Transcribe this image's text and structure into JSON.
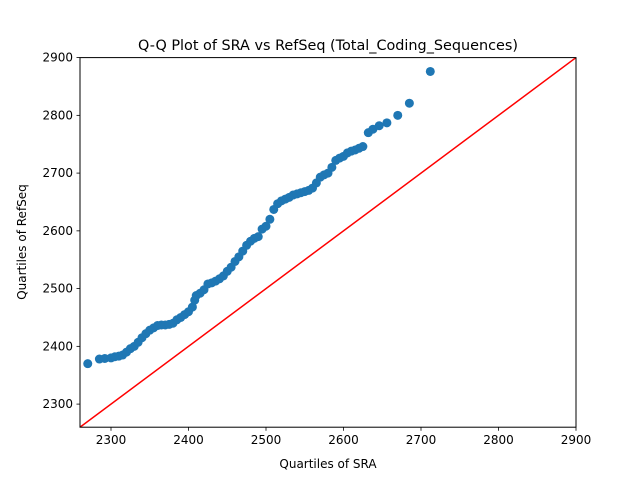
{
  "chart_data": {
    "type": "scatter",
    "title": "Q-Q Plot of SRA vs RefSeq (Total_Coding_Sequences)",
    "xlabel": "Quartiles of SRA",
    "ylabel": "Quartiles of RefSeq",
    "xlim": [
      2260,
      2900
    ],
    "ylim": [
      2260,
      2900
    ],
    "xticks": [
      "2300",
      "2400",
      "2500",
      "2600",
      "2700",
      "2800",
      "2900"
    ],
    "yticks": [
      "2300",
      "2400",
      "2500",
      "2600",
      "2700",
      "2800",
      "2900"
    ],
    "grid": false,
    "legend": "none",
    "series": [
      {
        "kind": "points",
        "color": "#1f77b4",
        "x": [
          2270,
          2285,
          2292,
          2300,
          2305,
          2310,
          2315,
          2320,
          2325,
          2330,
          2335,
          2340,
          2345,
          2350,
          2355,
          2360,
          2365,
          2370,
          2375,
          2380,
          2385,
          2390,
          2395,
          2400,
          2405,
          2408,
          2410,
          2415,
          2420,
          2425,
          2430,
          2435,
          2440,
          2445,
          2450,
          2455,
          2460,
          2465,
          2470,
          2475,
          2480,
          2485,
          2490,
          2495,
          2500,
          2505,
          2510,
          2515,
          2520,
          2525,
          2530,
          2535,
          2540,
          2545,
          2550,
          2555,
          2560,
          2565,
          2570,
          2575,
          2580,
          2585,
          2590,
          2595,
          2600,
          2605,
          2610,
          2615,
          2620,
          2625,
          2632,
          2638,
          2646,
          2656,
          2670,
          2685,
          2712
        ],
        "y": [
          2370,
          2378,
          2379,
          2380,
          2382,
          2383,
          2385,
          2390,
          2396,
          2400,
          2407,
          2415,
          2422,
          2428,
          2432,
          2436,
          2437,
          2437,
          2438,
          2440,
          2446,
          2450,
          2455,
          2460,
          2468,
          2480,
          2488,
          2492,
          2498,
          2508,
          2510,
          2513,
          2517,
          2522,
          2530,
          2537,
          2547,
          2555,
          2565,
          2575,
          2582,
          2587,
          2590,
          2603,
          2608,
          2620,
          2637,
          2647,
          2652,
          2655,
          2658,
          2662,
          2664,
          2666,
          2668,
          2670,
          2674,
          2683,
          2693,
          2697,
          2700,
          2710,
          2722,
          2726,
          2729,
          2735,
          2738,
          2740,
          2743,
          2746,
          2770,
          2776,
          2782,
          2787,
          2800,
          2821,
          2876
        ]
      },
      {
        "kind": "reference-line",
        "color": "#ff0000",
        "x": [
          2260,
          2900
        ],
        "y": [
          2260,
          2900
        ]
      }
    ]
  }
}
